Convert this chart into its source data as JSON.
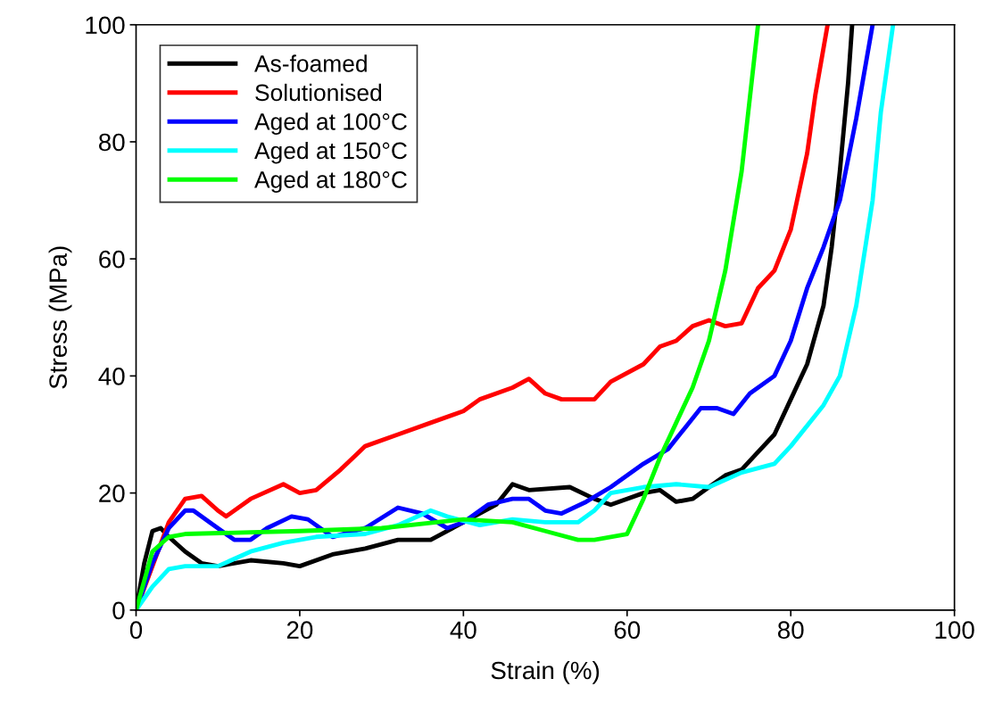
{
  "chart_data": {
    "type": "line",
    "xlabel": "Strain (%)",
    "ylabel": "Stress (MPa)",
    "xlim": [
      0,
      100
    ],
    "ylim": [
      0,
      100
    ],
    "xticks": [
      0,
      20,
      40,
      60,
      80,
      100
    ],
    "yticks": [
      0,
      20,
      40,
      60,
      80,
      100
    ],
    "grid": false,
    "legend": "top left",
    "series": [
      {
        "name": "As-foamed",
        "color": "#000000",
        "x": [
          0,
          1,
          2,
          3,
          4,
          6,
          8,
          10,
          14,
          18,
          20,
          24,
          28,
          32,
          36,
          40,
          44,
          46,
          48,
          53,
          56,
          58,
          62,
          64,
          66,
          68,
          70,
          72,
          74,
          76,
          78,
          80,
          82,
          84,
          85,
          86,
          87,
          87.5
        ],
        "values": [
          0,
          8,
          13.5,
          14,
          12.5,
          10,
          8,
          7.5,
          8.5,
          8,
          7.5,
          9.5,
          10.5,
          12,
          12,
          15,
          18,
          21.5,
          20.5,
          21,
          19,
          18,
          20,
          20.5,
          18.5,
          19,
          21,
          23,
          24,
          27,
          30,
          36,
          42,
          52,
          62,
          75,
          90,
          100
        ]
      },
      {
        "name": "Solutionised",
        "color": "#ff0000",
        "x": [
          0,
          4,
          6,
          8,
          10,
          11,
          14,
          18,
          20,
          22,
          25,
          28,
          32,
          36,
          40,
          42,
          46,
          48,
          50,
          52,
          56,
          58,
          62,
          64,
          66,
          68,
          70,
          72,
          74,
          76,
          78,
          80,
          82,
          83,
          84.5
        ],
        "values": [
          0,
          15,
          19,
          19.5,
          17,
          16,
          19,
          21.5,
          20,
          20.5,
          24,
          28,
          30,
          32,
          34,
          36,
          38,
          39.5,
          37,
          36,
          36,
          39,
          42,
          45,
          46,
          48.5,
          49.5,
          48.5,
          49,
          55,
          58,
          65,
          78,
          88,
          100
        ]
      },
      {
        "name": "Aged at 100°C",
        "color": "#0000ff",
        "x": [
          0,
          2,
          4,
          6,
          7,
          9,
          12,
          14,
          16,
          19,
          21,
          24,
          28,
          32,
          35,
          38,
          40,
          43,
          46,
          48,
          50,
          52,
          55,
          58,
          62,
          65,
          67,
          69,
          71,
          73,
          75,
          78,
          80,
          82,
          84,
          86,
          88,
          90
        ],
        "values": [
          0,
          8,
          14,
          17,
          17,
          15,
          12,
          12,
          14,
          16,
          15.5,
          12.5,
          14,
          17.5,
          16.5,
          14,
          15,
          18,
          19,
          19,
          17,
          16.5,
          18.5,
          21,
          25,
          27.5,
          31,
          34.5,
          34.5,
          33.5,
          37,
          40,
          46,
          55,
          62,
          70,
          84,
          100
        ]
      },
      {
        "name": "Aged at 150°C",
        "color": "#00ffff",
        "x": [
          0,
          2,
          4,
          6,
          10,
          14,
          18,
          22,
          28,
          32,
          36,
          38,
          42,
          46,
          50,
          54,
          56,
          58,
          62,
          66,
          70,
          74,
          78,
          80,
          84,
          86,
          88,
          90,
          91,
          92.5
        ],
        "values": [
          0,
          4,
          7,
          7.5,
          7.5,
          10,
          11.5,
          12.5,
          13,
          14.5,
          17,
          16,
          14.5,
          15.5,
          15,
          15,
          17,
          20,
          21,
          21.5,
          21,
          23.5,
          25,
          28,
          35,
          40,
          52,
          70,
          85,
          100
        ]
      },
      {
        "name": "Aged at 180°C",
        "color": "#00ff00",
        "x": [
          0,
          2,
          4,
          6,
          20,
          30,
          40,
          46,
          50,
          54,
          56,
          58,
          60,
          62,
          64,
          66,
          68,
          70,
          72,
          74,
          76
        ],
        "values": [
          0,
          10,
          12.5,
          13,
          13.5,
          14,
          15.5,
          15,
          13.5,
          12,
          12,
          12.5,
          13,
          19,
          26,
          32,
          38,
          46,
          58,
          75,
          100
        ]
      }
    ]
  }
}
